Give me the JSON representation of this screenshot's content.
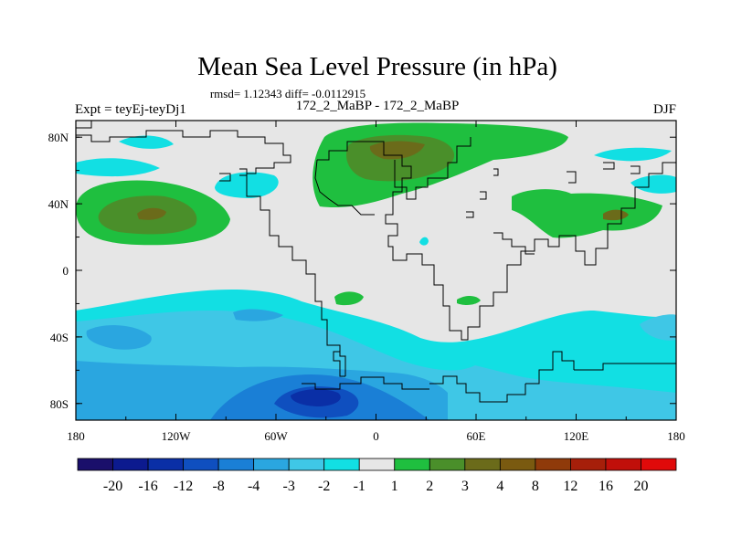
{
  "chart_data": {
    "type": "heatmap",
    "title": "Mean Sea Level Pressure (in hPa)",
    "subtitle": "rmsd= 1.12343 diff= -0.0112915",
    "left_label": "Expt = teyEj-teyDj1",
    "center_label": "172_2_MaBP - 172_2_MaBP",
    "right_label": "DJF",
    "xlabel": "",
    "ylabel": "",
    "xlim": [
      -180,
      180
    ],
    "ylim": [
      -90,
      90
    ],
    "x_ticks": [
      {
        "value": -180,
        "label": "180"
      },
      {
        "value": -120,
        "label": "120W"
      },
      {
        "value": -60,
        "label": "60W"
      },
      {
        "value": 0,
        "label": "0"
      },
      {
        "value": 60,
        "label": "60E"
      },
      {
        "value": 120,
        "label": "120E"
      },
      {
        "value": 180,
        "label": "180"
      }
    ],
    "y_ticks": [
      {
        "value": 80,
        "label": "80N"
      },
      {
        "value": 40,
        "label": "40N"
      },
      {
        "value": 0,
        "label": "0"
      },
      {
        "value": -40,
        "label": "40S"
      },
      {
        "value": -80,
        "label": "80S"
      }
    ],
    "colorbar": {
      "levels": [
        -20,
        -16,
        -12,
        -8,
        -4,
        -3,
        -2,
        -1,
        1,
        2,
        3,
        4,
        8,
        12,
        16,
        20
      ],
      "labels": [
        "-20",
        "-16",
        "-12",
        "-8",
        "-4",
        "-3",
        "-2",
        "-1",
        "1",
        "2",
        "3",
        "4",
        "8",
        "12",
        "16",
        "20"
      ],
      "colors": [
        "#1a0f6b",
        "#0c1a8f",
        "#0a2fa6",
        "#0f4fbf",
        "#1a7fd6",
        "#2aa6e0",
        "#3fc7e6",
        "#12dfe3",
        "#e6e6e6",
        "#1fbf3f",
        "#4a8f2a",
        "#6b6b1a",
        "#7a5a10",
        "#8f3a0a",
        "#a61f0a",
        "#c00f0a",
        "#e00a0a"
      ]
    },
    "regions": [
      {
        "name": "north-pacific-high-anomaly",
        "range": "2 to 4",
        "center_lon": -145,
        "center_lat": 35
      },
      {
        "name": "arctic-north-atlantic-high-anomaly",
        "range": "2 to 4",
        "center_lon": 10,
        "center_lat": 70
      },
      {
        "name": "east-asia-high-anomaly",
        "range": "2 to 4",
        "center_lon": 155,
        "center_lat": 35
      },
      {
        "name": "southern-ocean-low-anomaly",
        "range": "-8 to -1",
        "center_lon": -30,
        "center_lat": -75
      }
    ]
  }
}
